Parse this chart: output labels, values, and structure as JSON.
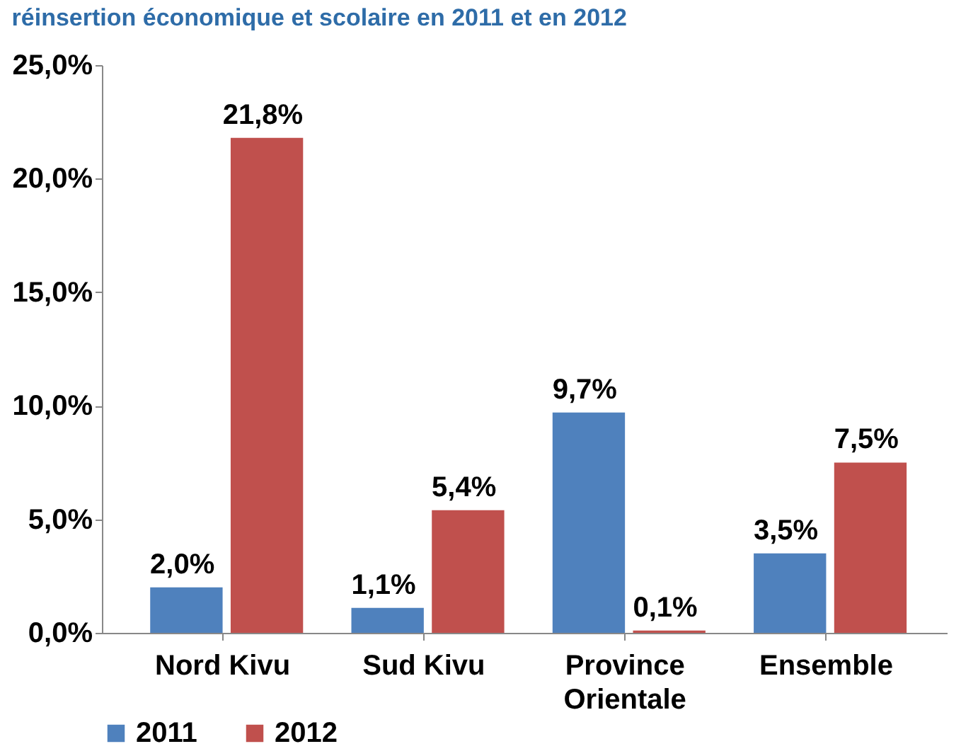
{
  "chart_data": {
    "type": "bar",
    "title": "réinsertion économique et scolaire en 2011 et en 2012",
    "categories": [
      "Nord Kivu",
      "Sud Kivu",
      "Province Orientale",
      "Ensemble"
    ],
    "series": [
      {
        "name": "2011",
        "color": "#4f81bd",
        "values": [
          2.0,
          1.1,
          9.7,
          3.5
        ],
        "value_labels": [
          "2,0%",
          "1,1%",
          "9,7%",
          "3,5%"
        ]
      },
      {
        "name": "2012",
        "color": "#c0504d",
        "values": [
          21.8,
          5.4,
          0.1,
          7.5
        ],
        "value_labels": [
          "21,8%",
          "5,4%",
          "0,1%",
          "7,5%"
        ]
      }
    ],
    "ylim": [
      0,
      25
    ],
    "yticks": [
      {
        "value": 0,
        "label": "0,0%"
      },
      {
        "value": 5,
        "label": "5,0%"
      },
      {
        "value": 10,
        "label": "10,0%"
      },
      {
        "value": 15,
        "label": "15,0%"
      },
      {
        "value": 20,
        "label": "20,0%"
      },
      {
        "value": 25,
        "label": "25,0%"
      }
    ],
    "grid": false,
    "legend": "bottom"
  }
}
